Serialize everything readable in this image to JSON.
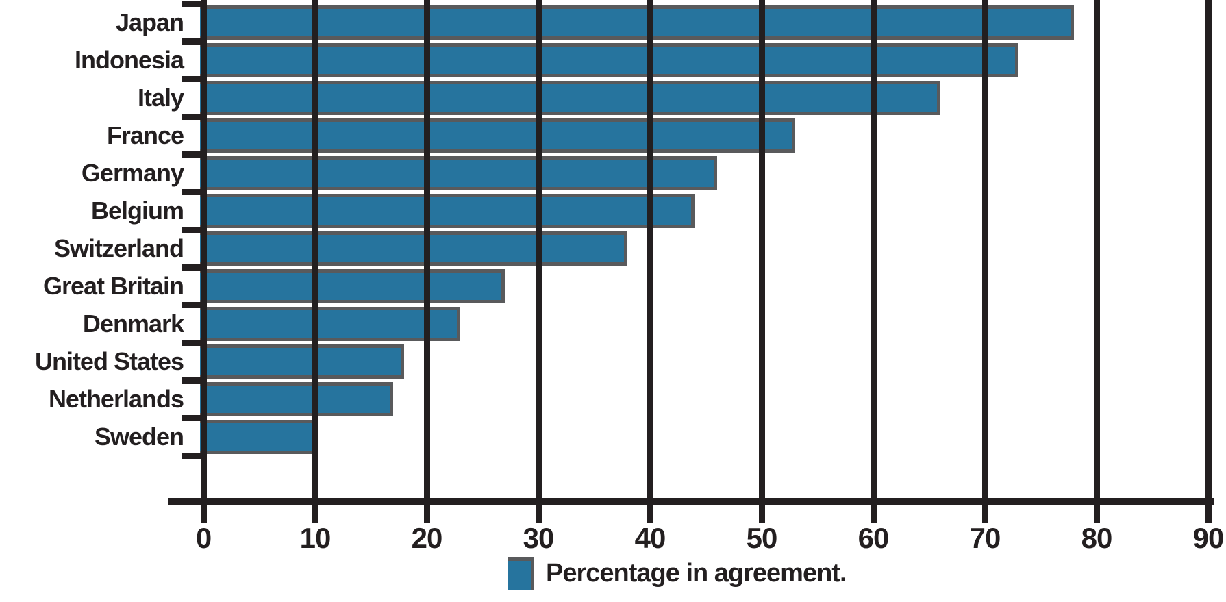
{
  "chart_data": {
    "type": "bar",
    "orientation": "horizontal",
    "title": "",
    "xlabel": "",
    "ylabel": "",
    "categories": [
      "Japan",
      "Indonesia",
      "Italy",
      "France",
      "Germany",
      "Belgium",
      "Switzerland",
      "Great Britain",
      "Denmark",
      "United States",
      "Netherlands",
      "Sweden"
    ],
    "series": [
      {
        "name": "Percentage in agreement.",
        "values": [
          78,
          73,
          66,
          53,
          46,
          44,
          38,
          27,
          23,
          18,
          17,
          10
        ]
      }
    ],
    "xlim": [
      0,
      90
    ],
    "xticks": [
      "0",
      "10",
      "20",
      "30",
      "40",
      "50",
      "60",
      "70",
      "80",
      "90"
    ],
    "grid": true,
    "legend": {
      "position": "bottom",
      "label": "Percentage in agreement."
    },
    "colors": {
      "bar_fill": "#26749E",
      "bar_border": "#595A5C",
      "line_and_text": "#231F20",
      "background": "#FFFFFF"
    }
  }
}
